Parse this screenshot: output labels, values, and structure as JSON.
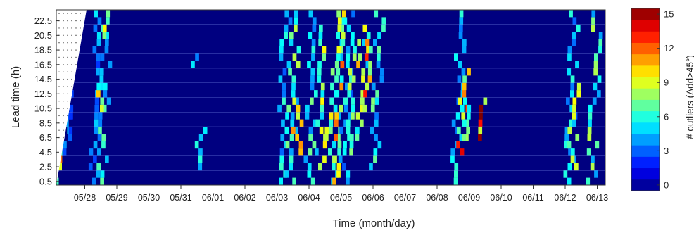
{
  "chart_data": {
    "type": "heatmap",
    "title": "",
    "xlabel": "Time (month/day)",
    "ylabel": "Lead time (h)",
    "colorbar_label": "# outliers (Δdd>45°)",
    "x_tick_labels": [
      "05/28",
      "05/29",
      "05/30",
      "05/31",
      "06/01",
      "06/02",
      "06/03",
      "06/04",
      "06/05",
      "06/06",
      "06/07",
      "06/08",
      "06/09",
      "06/10",
      "06/11",
      "06/12",
      "06/13"
    ],
    "y_tick_labels": [
      "0.5",
      "2.5",
      "4.5",
      "6.5",
      "8.5",
      "10.5",
      "12.5",
      "14.5",
      "16.5",
      "18.5",
      "20.5",
      "22.5"
    ],
    "x_range": [
      "05/27 02:00",
      "06/13 00:00"
    ],
    "y_range": [
      0,
      24
    ],
    "lead_times_h": [
      0.5,
      1.5,
      2.5,
      3.5,
      4.5,
      5.5,
      6.5,
      7.5,
      8.5,
      9.5,
      10.5,
      11.5,
      12.5,
      13.5,
      14.5,
      15.5,
      16.5,
      17.5,
      18.5,
      19.5,
      20.5,
      21.5,
      22.5,
      23.5
    ],
    "color_range": [
      0,
      16
    ],
    "colorbar_ticks": [
      0,
      3,
      6,
      9,
      12,
      15
    ],
    "colormap": "jet",
    "background_value": 0,
    "outlier_events": [
      {
        "time": "05/27 03:00",
        "lead_h_range": [
          0,
          4
        ],
        "value": 8
      },
      {
        "time": "05/27 05:00",
        "lead_h_range": [
          2,
          6
        ],
        "value": 12
      },
      {
        "time": "05/27 08:00",
        "lead_h_range": [
          4,
          10
        ],
        "value": 5
      },
      {
        "time": "05/27 12:00",
        "lead_h_range": [
          6,
          16
        ],
        "value": 4
      },
      {
        "time": "05/28 07:00",
        "lead_h_range": [
          0,
          24
        ],
        "value": 5
      },
      {
        "time": "05/28 13:00",
        "lead_h_range": [
          0,
          24
        ],
        "value": 7
      },
      {
        "time": "05/28 11:00",
        "lead_h_range": [
          10,
          14
        ],
        "value": 10
      },
      {
        "time": "05/28 14:00",
        "lead_h_range": [
          20,
          22
        ],
        "value": 11
      },
      {
        "time": "05/31 14:00",
        "lead_h_range": [
          2,
          8
        ],
        "value": 6
      },
      {
        "time": "05/31 06:00",
        "lead_h_range": [
          16,
          18
        ],
        "value": 5
      },
      {
        "time": "06/03 03:00",
        "lead_h_range": [
          0,
          24
        ],
        "value": 6
      },
      {
        "time": "06/03 10:00",
        "lead_h_range": [
          0,
          24
        ],
        "value": 8
      },
      {
        "time": "06/03 14:00",
        "lead_h_range": [
          4,
          12
        ],
        "value": 12
      },
      {
        "time": "06/04 00:00",
        "lead_h_range": [
          0,
          24
        ],
        "value": 7
      },
      {
        "time": "06/04 08:00",
        "lead_h_range": [
          2,
          22
        ],
        "value": 9
      },
      {
        "time": "06/04 15:00",
        "lead_h_range": [
          6,
          12
        ],
        "value": 12
      },
      {
        "time": "06/04 18:00",
        "lead_h_range": [
          0,
          24
        ],
        "value": 8
      },
      {
        "time": "06/04 22:00",
        "lead_h_range": [
          0,
          24
        ],
        "value": 11
      },
      {
        "time": "06/05 02:00",
        "lead_h_range": [
          0,
          24
        ],
        "value": 6
      },
      {
        "time": "06/05 07:00",
        "lead_h_range": [
          4,
          20
        ],
        "value": 10
      },
      {
        "time": "06/05 14:00",
        "lead_h_range": [
          6,
          22
        ],
        "value": 9
      },
      {
        "time": "06/05 19:00",
        "lead_h_range": [
          10,
          20
        ],
        "value": 13
      },
      {
        "time": "06/06 01:00",
        "lead_h_range": [
          2,
          24
        ],
        "value": 7
      },
      {
        "time": "06/08 14:00",
        "lead_h_range": [
          0,
          24
        ],
        "value": 6
      },
      {
        "time": "06/08 18:00",
        "lead_h_range": [
          4,
          16
        ],
        "value": 13
      },
      {
        "time": "06/08 22:00",
        "lead_h_range": [
          6,
          12
        ],
        "value": 9
      },
      {
        "time": "06/09 07:00",
        "lead_h_range": [
          6,
          12
        ],
        "value": 14
      },
      {
        "time": "06/12 03:00",
        "lead_h_range": [
          0,
          24
        ],
        "value": 6
      },
      {
        "time": "06/12 05:00",
        "lead_h_range": [
          2,
          14
        ],
        "value": 9
      },
      {
        "time": "06/12 20:00",
        "lead_h_range": [
          0,
          24
        ],
        "value": 8
      }
    ]
  }
}
